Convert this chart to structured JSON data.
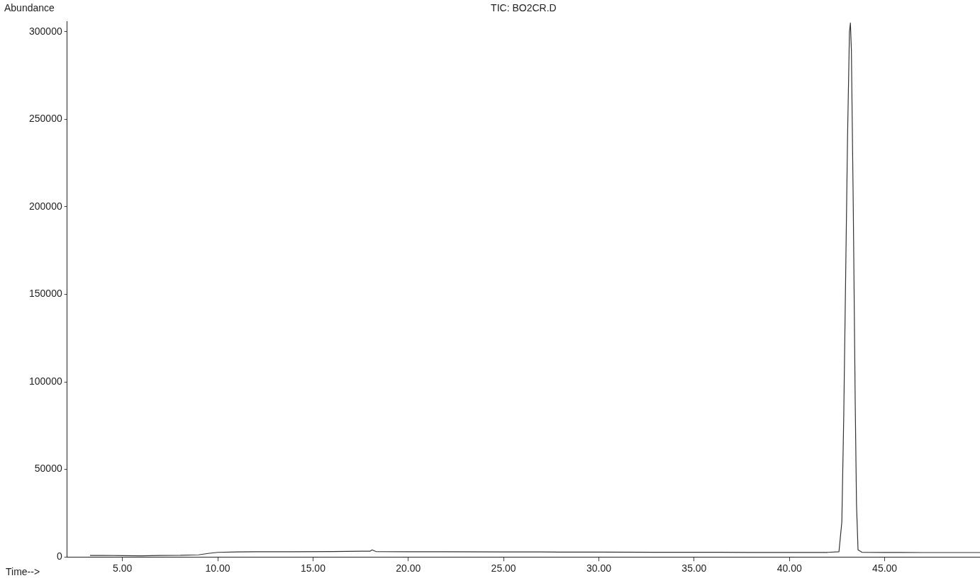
{
  "chart_data": {
    "type": "line",
    "title": "TIC: BO2CR.D",
    "xlabel": "Time-->",
    "ylabel": "Abundance",
    "x": [
      3.3,
      4,
      5,
      6,
      7,
      8,
      9,
      9.5,
      10,
      11,
      12,
      14,
      16,
      18,
      18.1,
      18.3,
      20,
      22,
      25,
      28,
      30,
      33,
      35,
      38,
      40,
      42,
      42.6,
      42.75,
      42.85,
      42.95,
      43.05,
      43.15,
      43.2,
      43.25,
      43.35,
      43.45,
      43.52,
      43.6,
      43.8,
      45,
      47,
      50
    ],
    "series": [
      {
        "color": "#333333",
        "values": [
          800,
          900,
          700,
          600,
          800,
          900,
          1200,
          2000,
          2600,
          2900,
          3000,
          3000,
          3100,
          3300,
          4000,
          3100,
          3000,
          3000,
          2900,
          2800,
          2800,
          2700,
          2700,
          2600,
          2600,
          2600,
          3000,
          20000,
          80000,
          160000,
          240000,
          300000,
          305000,
          290000,
          200000,
          90000,
          30000,
          4000,
          2700,
          2600,
          2500,
          2500
        ]
      }
    ],
    "xlim": [
      2.1,
      50
    ],
    "xticks": [
      {
        "value": 5,
        "label": "5.00"
      },
      {
        "value": 10,
        "label": "10.00"
      },
      {
        "value": 15,
        "label": "15.00"
      },
      {
        "value": 20,
        "label": "20.00"
      },
      {
        "value": 25,
        "label": "25.00"
      },
      {
        "value": 30,
        "label": "30.00"
      },
      {
        "value": 35,
        "label": "35.00"
      },
      {
        "value": 40,
        "label": "40.00"
      },
      {
        "value": 45,
        "label": "45.00"
      }
    ],
    "ylim": [
      0,
      306000
    ],
    "yticks": [
      0,
      50000,
      100000,
      150000,
      200000,
      250000,
      300000
    ],
    "grid": false,
    "legend": false,
    "marker": "none",
    "line_style": "solid"
  }
}
